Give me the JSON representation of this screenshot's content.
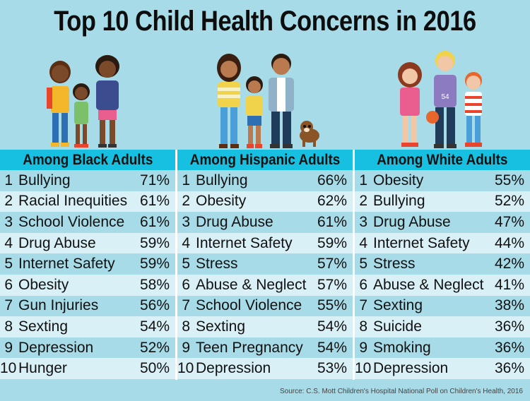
{
  "title": "Top 10 Child Health Concerns in 2016",
  "columns": [
    {
      "header": "Among Black Adults",
      "rows": [
        {
          "rank": "1",
          "label": "Bullying",
          "pct": "71%"
        },
        {
          "rank": "2",
          "label": "Racial Inequities",
          "pct": "61%"
        },
        {
          "rank": "3",
          "label": "School Violence",
          "pct": "61%"
        },
        {
          "rank": "4",
          "label": "Drug Abuse",
          "pct": "59%"
        },
        {
          "rank": "5",
          "label": "Internet Safety",
          "pct": "59%"
        },
        {
          "rank": "6",
          "label": "Obesity",
          "pct": "58%"
        },
        {
          "rank": "7",
          "label": "Gun Injuries",
          "pct": "56%"
        },
        {
          "rank": "8",
          "label": "Sexting",
          "pct": "54%"
        },
        {
          "rank": "9",
          "label": "Depression",
          "pct": "52%"
        },
        {
          "rank": "10",
          "label": "Hunger",
          "pct": "50%"
        }
      ]
    },
    {
      "header": "Among Hispanic Adults",
      "rows": [
        {
          "rank": "1",
          "label": "Bullying",
          "pct": "66%"
        },
        {
          "rank": "2",
          "label": "Obesity",
          "pct": "62%"
        },
        {
          "rank": "3",
          "label": "Drug Abuse",
          "pct": "61%"
        },
        {
          "rank": "4",
          "label": "Internet Safety",
          "pct": "59%"
        },
        {
          "rank": "5",
          "label": "Stress",
          "pct": "57%"
        },
        {
          "rank": "6",
          "label": "Abuse & Neglect",
          "pct": "57%"
        },
        {
          "rank": "7",
          "label": "School Violence",
          "pct": "55%"
        },
        {
          "rank": "8",
          "label": "Sexting",
          "pct": "54%"
        },
        {
          "rank": "9",
          "label": "Teen Pregnancy",
          "pct": "54%"
        },
        {
          "rank": "10",
          "label": "Depression",
          "pct": "53%"
        }
      ]
    },
    {
      "header": "Among White Adults",
      "rows": [
        {
          "rank": "1",
          "label": "Obesity",
          "pct": "55%"
        },
        {
          "rank": "2",
          "label": "Bullying",
          "pct": "52%"
        },
        {
          "rank": "3",
          "label": "Drug Abuse",
          "pct": "47%"
        },
        {
          "rank": "4",
          "label": "Internet Safety",
          "pct": "44%"
        },
        {
          "rank": "5",
          "label": "Stress",
          "pct": "42%"
        },
        {
          "rank": "6",
          "label": "Abuse & Neglect",
          "pct": "41%"
        },
        {
          "rank": "7",
          "label": "Sexting",
          "pct": "38%"
        },
        {
          "rank": "8",
          "label": "Suicide",
          "pct": "36%"
        },
        {
          "rank": "9",
          "label": "Smoking",
          "pct": "36%"
        },
        {
          "rank": "10",
          "label": "Depression",
          "pct": "36%"
        }
      ]
    }
  ],
  "jersey_number": "54",
  "source": "Source: C.S. Mott Children's Hospital National Poll on Children's Health, 2016",
  "colors": {
    "background": "#a6dbe7",
    "header": "#17c0e0",
    "row_alt": "#d8f0f6"
  }
}
